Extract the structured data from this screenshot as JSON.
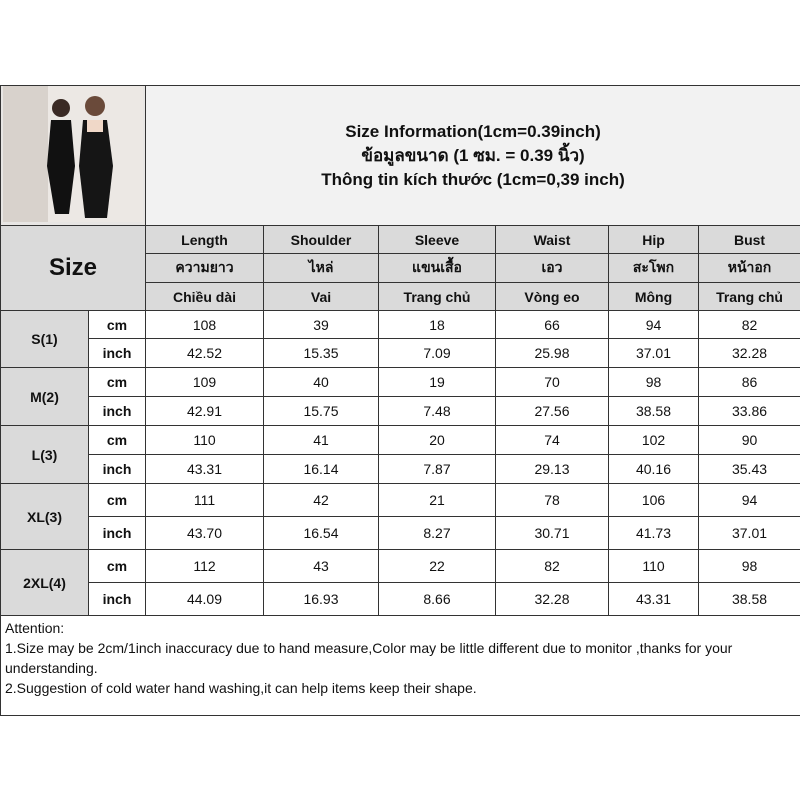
{
  "title": {
    "line1": "Size Information(1cm=0.39inch)",
    "line2": "ข้อมูลขนาด (1 ซม. = 0.39 นิ้ว)",
    "line3": "Thông tin kích thước (1cm=0,39 inch)"
  },
  "size_label": "Size",
  "columns": [
    {
      "en": "Length",
      "th": "ความยาว",
      "vi": "Chiều dài"
    },
    {
      "en": "Shoulder",
      "th": "ไหล่",
      "vi": "Vai"
    },
    {
      "en": "Sleeve",
      "th": "แขนเสื้อ",
      "vi": "Trang chủ"
    },
    {
      "en": "Waist",
      "th": "เอว",
      "vi": "Vòng eo"
    },
    {
      "en": "Hip",
      "th": "สะโพก",
      "vi": "Mông"
    },
    {
      "en": "Bust",
      "th": "หน้าอก",
      "vi": "Trang chủ"
    }
  ],
  "units": {
    "cm": "cm",
    "inch": "inch"
  },
  "rows": [
    {
      "size": "S(1)",
      "cm": [
        "108",
        "39",
        "18",
        "66",
        "94",
        "82"
      ],
      "inch": [
        "42.52",
        "15.35",
        "7.09",
        "25.98",
        "37.01",
        "32.28"
      ]
    },
    {
      "size": "M(2)",
      "cm": [
        "109",
        "40",
        "19",
        "70",
        "98",
        "86"
      ],
      "inch": [
        "42.91",
        "15.75",
        "7.48",
        "27.56",
        "38.58",
        "33.86"
      ]
    },
    {
      "size": "L(3)",
      "cm": [
        "110",
        "41",
        "20",
        "74",
        "102",
        "90"
      ],
      "inch": [
        "43.31",
        "16.14",
        "7.87",
        "29.13",
        "40.16",
        "35.43"
      ]
    },
    {
      "size": "XL(3)",
      "cm": [
        "111",
        "42",
        "21",
        "78",
        "106",
        "94"
      ],
      "inch": [
        "43.70",
        "16.54",
        "8.27",
        "30.71",
        "41.73",
        "37.01"
      ]
    },
    {
      "size": "2XL(4)",
      "cm": [
        "112",
        "43",
        "22",
        "82",
        "110",
        "98"
      ],
      "inch": [
        "44.09",
        "16.93",
        "8.66",
        "32.28",
        "43.31",
        "38.58"
      ]
    }
  ],
  "attention": {
    "heading": "Attention:",
    "note1": "1.Size may be 2cm/1inch inaccuracy due to hand measure,Color may be little different due to monitor ,thanks for your understanding.",
    "note2": "2.Suggestion of cold water hand washing,it can help items keep their shape."
  }
}
